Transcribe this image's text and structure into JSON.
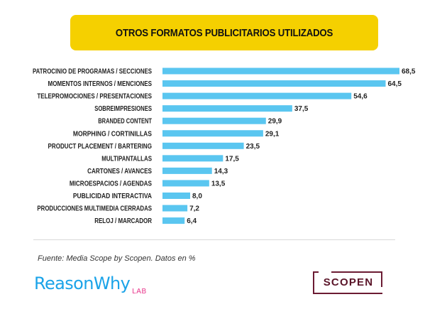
{
  "colors": {
    "title_bg": "#f5d000",
    "bar": "#5ac6f0",
    "brand_blue": "#1aa3e8",
    "brand_pink": "#e8338a",
    "scopen": "#6b1b33"
  },
  "chart_data": {
    "type": "bar",
    "orientation": "horizontal",
    "title": "OTROS FORMATOS PUBLICITARIOS UTILIZADOS",
    "categories": [
      "PATROCINIO DE PROGRAMAS / SECCIONES",
      "MOMENTOS INTERNOS / MENCIONES",
      "TELEPROMOCIONES / PRESENTACIONES",
      "SOBREIMPRESIONES",
      "BRANDED CONTENT",
      "MORPHING / CORTINILLAS",
      "PRODUCT PLACEMENT / BARTERING",
      "MULTIPANTALLAS",
      "CARTONES / AVANCES",
      "MICROESPACIOS / AGENDAS",
      "PUBLICIDAD INTERACTIVA",
      "PRODUCCIONES MULTIMEDIA CERRADAS",
      "RELOJ / MARCADOR"
    ],
    "values": [
      68.5,
      64.5,
      54.6,
      37.5,
      29.9,
      29.1,
      23.5,
      17.5,
      14.3,
      13.5,
      8.0,
      7.2,
      6.4
    ],
    "value_labels": [
      "68,5",
      "64,5",
      "54,6",
      "37,5",
      "29,9",
      "29,1",
      "23,5",
      "17,5",
      "14,3",
      "13,5",
      "8,0",
      "7,2",
      "6,4"
    ],
    "xlim": [
      0,
      68.5
    ],
    "grid": false,
    "legend": "none"
  },
  "source": "Fuente: Media Scope by Scopen. Datos en %",
  "logos": {
    "reason": "Reason",
    "why": "Why",
    "lab": "LAB",
    "scopen": "SCOPEN"
  }
}
